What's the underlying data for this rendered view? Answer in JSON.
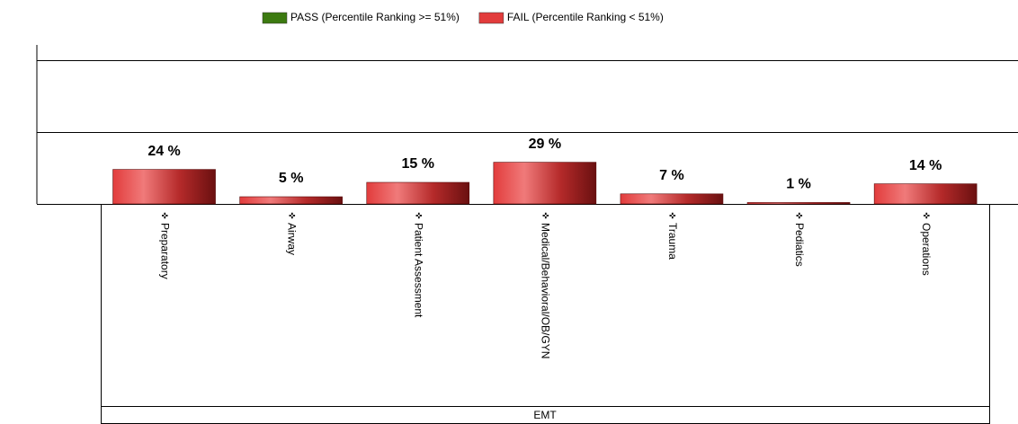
{
  "chart_data": {
    "type": "bar",
    "categories": [
      "Preparatory",
      "Airway",
      "Patient Assessment",
      "Medical/Behavioral/OB/GYN",
      "Trauma",
      "Pediatics",
      "Operations"
    ],
    "group_label": "EMT",
    "series": [
      {
        "name": "PASS (Percentile Ranking >= 51%)",
        "color": "#3c7a10",
        "values": [
          null,
          null,
          null,
          null,
          null,
          null,
          null
        ]
      },
      {
        "name": "FAIL (Percentile Ranking < 51%)",
        "color": "#e23c3c",
        "values": [
          24,
          5,
          15,
          29,
          7,
          1,
          14
        ],
        "value_labels": [
          "24 %",
          "5 %",
          "15 %",
          "29 %",
          "7 %",
          "1 %",
          "14 %"
        ]
      }
    ],
    "ylim": [
      0,
      100
    ],
    "yticks": [
      0,
      50,
      100
    ],
    "grid": true
  }
}
